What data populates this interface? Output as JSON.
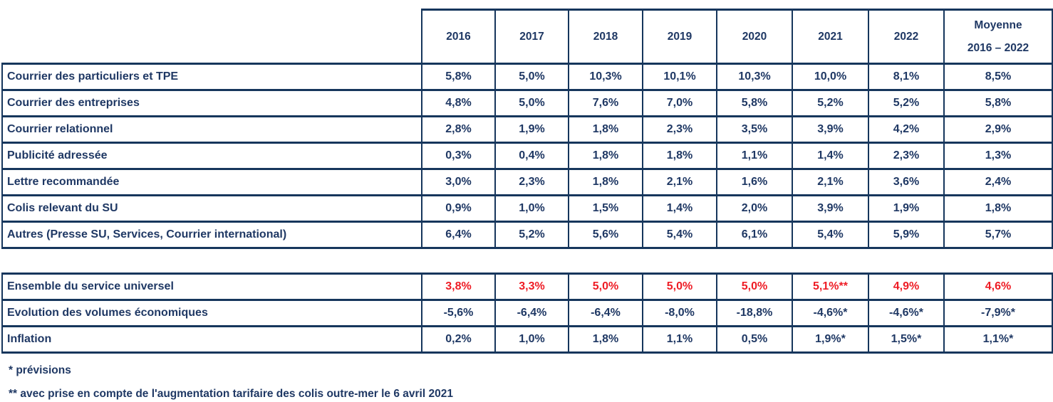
{
  "colors": {
    "text_navy": "#1F3864",
    "value_red": "#EE1C25",
    "border_navy": "#16365C",
    "background": "#FFFFFF"
  },
  "header": {
    "years": [
      "2016",
      "2017",
      "2018",
      "2019",
      "2020",
      "2021",
      "2022"
    ],
    "moyenne": {
      "line1": "Moyenne",
      "line2": "2016 – 2022"
    }
  },
  "main_table": {
    "rows": [
      {
        "label": "Courrier des particuliers et TPE",
        "values": [
          "5,8%",
          "5,0%",
          "10,3%",
          "10,1%",
          "10,3%",
          "10,0%",
          "8,1%",
          "8,5%"
        ],
        "value_color": "navy"
      },
      {
        "label": "Courrier des entreprises",
        "values": [
          "4,8%",
          "5,0%",
          "7,6%",
          "7,0%",
          "5,8%",
          "5,2%",
          "5,2%",
          "5,8%"
        ],
        "value_color": "navy"
      },
      {
        "label": "Courrier relationnel",
        "values": [
          "2,8%",
          "1,9%",
          "1,8%",
          "2,3%",
          "3,5%",
          "3,9%",
          "4,2%",
          "2,9%"
        ],
        "value_color": "navy"
      },
      {
        "label": "Publicité adressée",
        "values": [
          "0,3%",
          "0,4%",
          "1,8%",
          "1,8%",
          "1,1%",
          "1,4%",
          "2,3%",
          "1,3%"
        ],
        "value_color": "navy"
      },
      {
        "label": "Lettre recommandée",
        "values": [
          "3,0%",
          "2,3%",
          "1,8%",
          "2,1%",
          "1,6%",
          "2,1%",
          "3,6%",
          "2,4%"
        ],
        "value_color": "navy"
      },
      {
        "label": "Colis relevant du SU",
        "values": [
          "0,9%",
          "1,0%",
          "1,5%",
          "1,4%",
          "2,0%",
          "3,9%",
          "1,9%",
          "1,8%"
        ],
        "value_color": "navy"
      },
      {
        "label": "Autres (Presse SU, Services, Courrier international)",
        "values": [
          "6,4%",
          "5,2%",
          "5,6%",
          "5,4%",
          "6,1%",
          "5,4%",
          "5,9%",
          "5,7%"
        ],
        "value_color": "navy"
      }
    ]
  },
  "summary_table": {
    "rows": [
      {
        "label": "Ensemble du service universel",
        "values": [
          "3,8%",
          "3,3%",
          "5,0%",
          "5,0%",
          "5,0%",
          "5,1%**",
          "4,9%",
          "4,6%"
        ],
        "value_color": "red"
      },
      {
        "label": "Evolution des volumes économiques",
        "values": [
          "-5,6%",
          "-6,4%",
          "-6,4%",
          "-8,0%",
          "-18,8%",
          "-4,6%*",
          "-4,6%*",
          "-7,9%*"
        ],
        "value_color": "navy"
      },
      {
        "label": "Inflation",
        "values": [
          "0,2%",
          "1,0%",
          "1,8%",
          "1,1%",
          "0,5%",
          "1,9%*",
          "1,5%*",
          "1,1%*"
        ],
        "value_color": "navy"
      }
    ]
  },
  "footnotes": [
    "* prévisions",
    "** avec prise en compte de l'augmentation tarifaire des colis outre-mer le 6 avril 2021"
  ]
}
